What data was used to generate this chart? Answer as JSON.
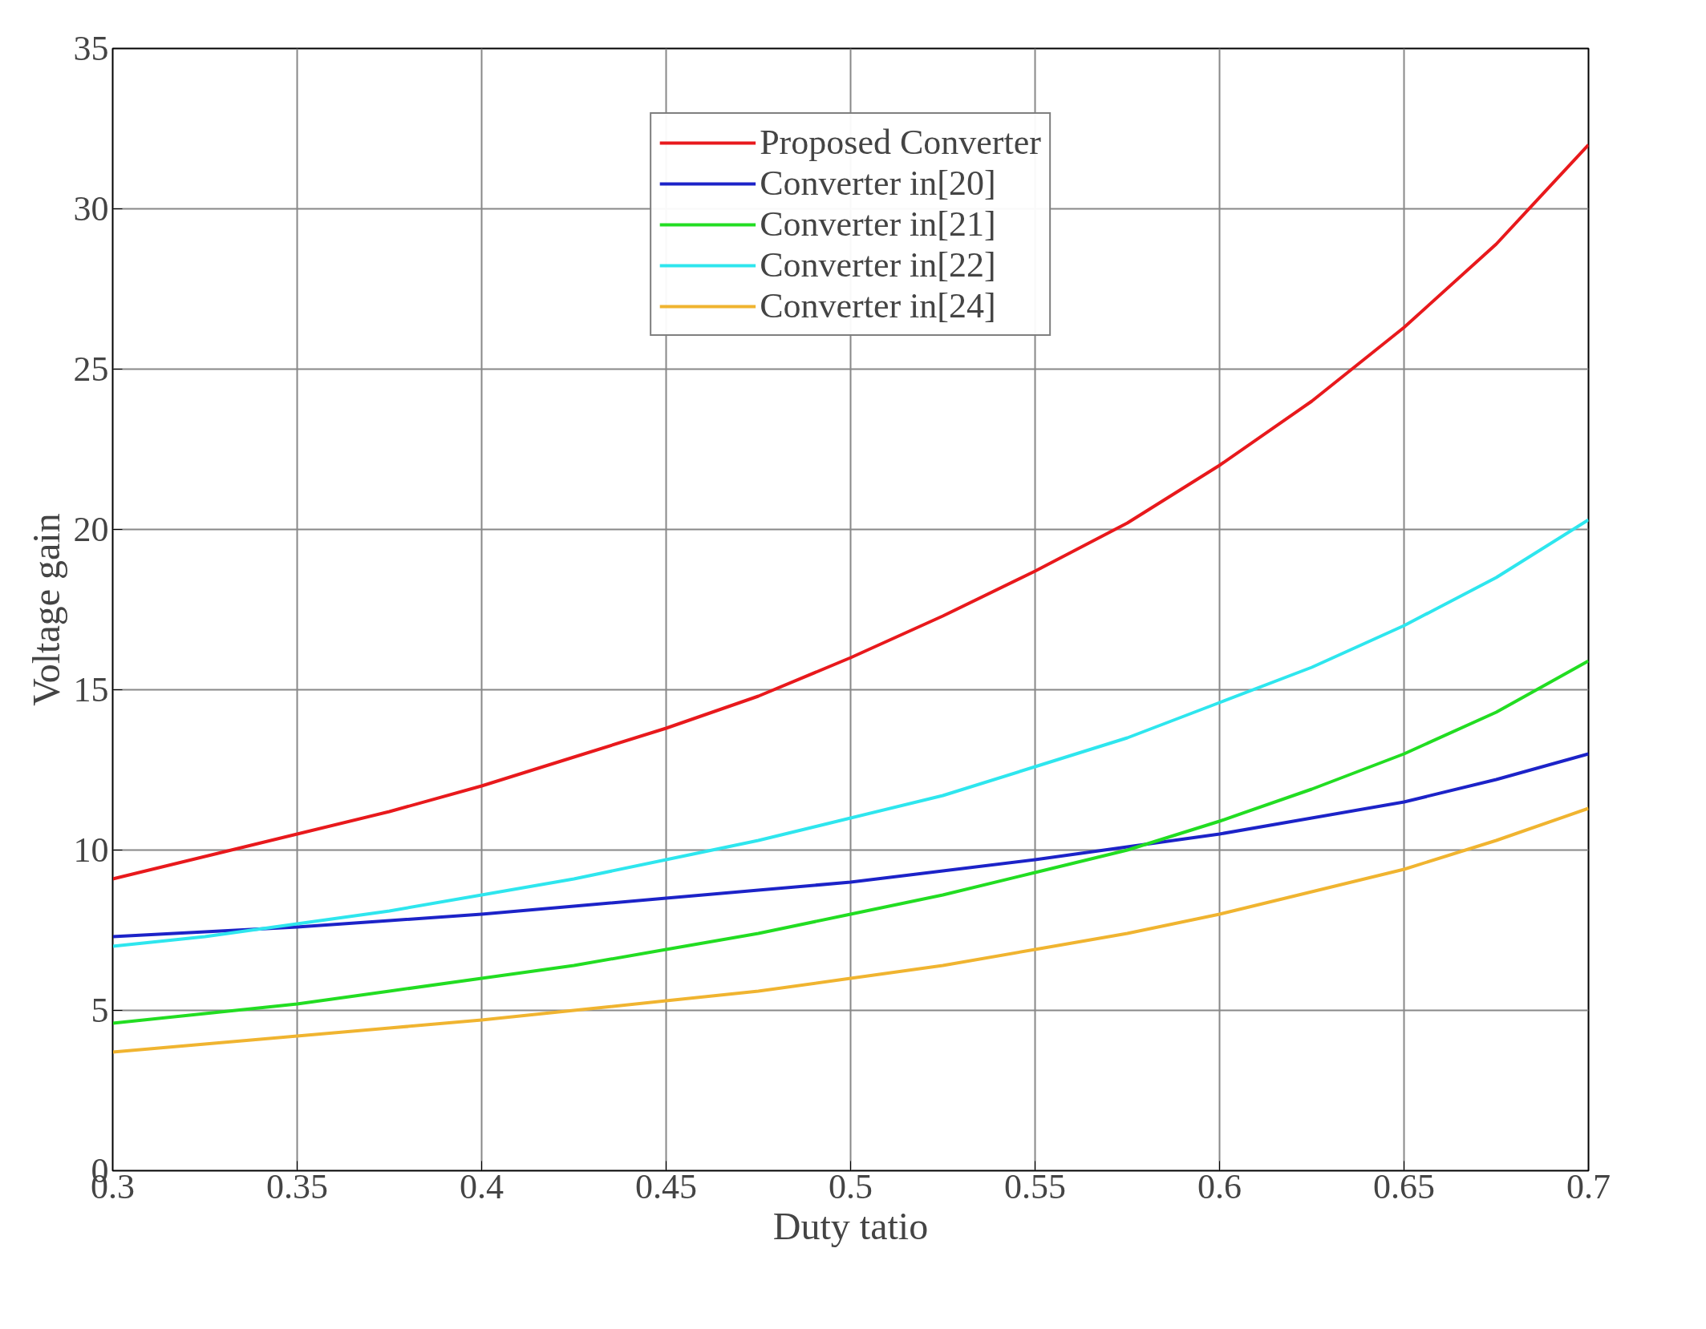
{
  "chart_data": {
    "type": "line",
    "xlabel": "Duty tatio",
    "ylabel": "Voltage gain",
    "x": [
      0.3,
      0.325,
      0.35,
      0.375,
      0.4,
      0.425,
      0.45,
      0.475,
      0.5,
      0.525,
      0.55,
      0.575,
      0.6,
      0.625,
      0.65,
      0.675,
      0.7
    ],
    "series": [
      {
        "name": "Proposed Converter",
        "color": "#e8191c",
        "values": [
          9.1,
          9.8,
          10.5,
          11.2,
          12.0,
          12.9,
          13.8,
          14.8,
          16.0,
          17.3,
          18.7,
          20.2,
          22.0,
          24.0,
          26.3,
          28.9,
          32.0
        ]
      },
      {
        "name": "Converter in[20]",
        "color": "#1c23c8",
        "values": [
          7.3,
          7.45,
          7.6,
          7.8,
          8.0,
          8.25,
          8.5,
          8.75,
          9.0,
          9.35,
          9.7,
          10.1,
          10.5,
          11.0,
          11.5,
          12.2,
          13.0
        ]
      },
      {
        "name": "Converter in[21]",
        "color": "#22dd22",
        "values": [
          4.6,
          4.9,
          5.2,
          5.6,
          6.0,
          6.4,
          6.9,
          7.4,
          8.0,
          8.6,
          9.3,
          10.0,
          10.9,
          11.9,
          13.0,
          14.3,
          15.9
        ]
      },
      {
        "name": "Converter in[22]",
        "color": "#2ee6ee",
        "values": [
          7.0,
          7.3,
          7.7,
          8.1,
          8.6,
          9.1,
          9.7,
          10.3,
          11.0,
          11.7,
          12.6,
          13.5,
          14.6,
          15.7,
          17.0,
          18.5,
          20.3
        ]
      },
      {
        "name": "Converter in[24]",
        "color": "#f0b430",
        "values": [
          3.7,
          3.95,
          4.2,
          4.45,
          4.7,
          5.0,
          5.3,
          5.6,
          6.0,
          6.4,
          6.9,
          7.4,
          8.0,
          8.7,
          9.4,
          10.3,
          11.3
        ]
      }
    ],
    "xlim": [
      0.3,
      0.7
    ],
    "xticks": [
      0.3,
      0.35,
      0.4,
      0.45,
      0.5,
      0.55,
      0.6,
      0.65,
      0.7
    ],
    "ylim": [
      0,
      35
    ],
    "yticks": [
      0,
      5,
      10,
      15,
      20,
      25,
      30,
      35
    ],
    "grid": true,
    "legend": "top",
    "line_style": "solid",
    "marker": "none"
  }
}
